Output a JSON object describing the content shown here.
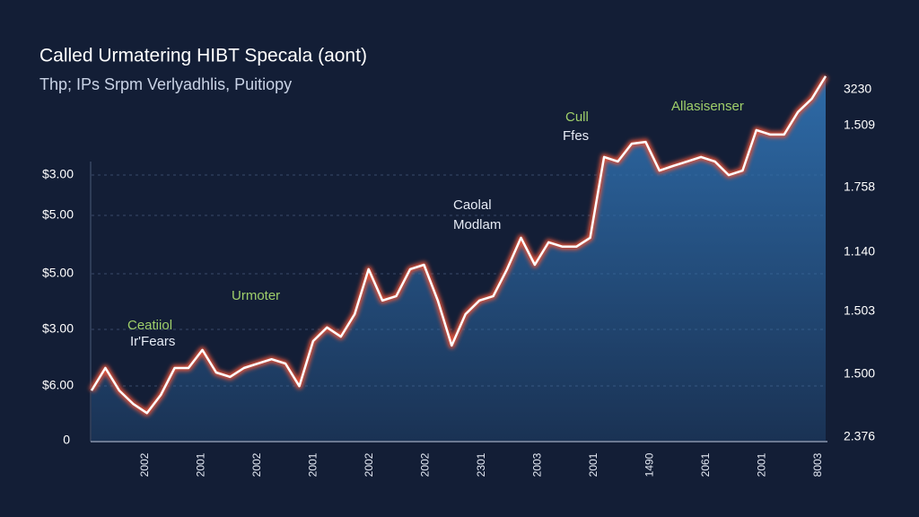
{
  "chart_data": {
    "type": "area",
    "title": "Called Urmatering HIBT Specala (aont)",
    "subtitle": "Thp; IPs Srpm Verlyadhlis, Puitiopy",
    "values": [
      13.6,
      19.7,
      13.6,
      10.0,
      7.5,
      12.4,
      19.7,
      19.7,
      24.6,
      18.5,
      17.3,
      19.7,
      20.9,
      22.1,
      20.9,
      14.8,
      27.0,
      30.7,
      28.2,
      34.3,
      46.5,
      38.0,
      39.2,
      46.5,
      47.7,
      38.0,
      25.8,
      34.3,
      38.0,
      39.2,
      46.5,
      55.0,
      47.7,
      53.8,
      52.6,
      52.6,
      55.0,
      76.9,
      75.7,
      80.5,
      81.0,
      73.2,
      74.5,
      75.7,
      76.9,
      75.7,
      72.0,
      73.2,
      84.2,
      83.0,
      83.0,
      89.1,
      92.7,
      98.8
    ],
    "color": "#ffffff",
    "glow_color": "#e0533a",
    "fill_color": "#2f6fae",
    "ylim": [
      0,
      100
    ],
    "grid": true,
    "y_labels": [
      "$3.00",
      "$5.00",
      "$5.00",
      "$3.00",
      "$6.00",
      "0"
    ],
    "y2_labels": [
      "3230",
      "1.509",
      "1.758",
      "1.140",
      "1.503",
      "1.500",
      "2.376"
    ],
    "x_labels": [
      "2002",
      "2001",
      "2002",
      "2001",
      "2002",
      "2002",
      "2301",
      "2003",
      "2001",
      "1490",
      "2061",
      "2001",
      "8003"
    ],
    "annotations": [
      {
        "text": "Ceatiiol",
        "color": "#9fcf6a"
      },
      {
        "text": "Ir'Fears",
        "color": "#e6ebf5"
      },
      {
        "text": "Urmoter",
        "color": "#9fcf6a"
      },
      {
        "text": "Caolal",
        "color": "#e6ebf5"
      },
      {
        "text": "Modlam",
        "color": "#e6ebf5"
      },
      {
        "text": "Cull",
        "color": "#9fcf6a"
      },
      {
        "text": "Ffes",
        "color": "#e6ebf5"
      },
      {
        "text": "Allasisenser",
        "color": "#9fcf6a"
      }
    ]
  }
}
